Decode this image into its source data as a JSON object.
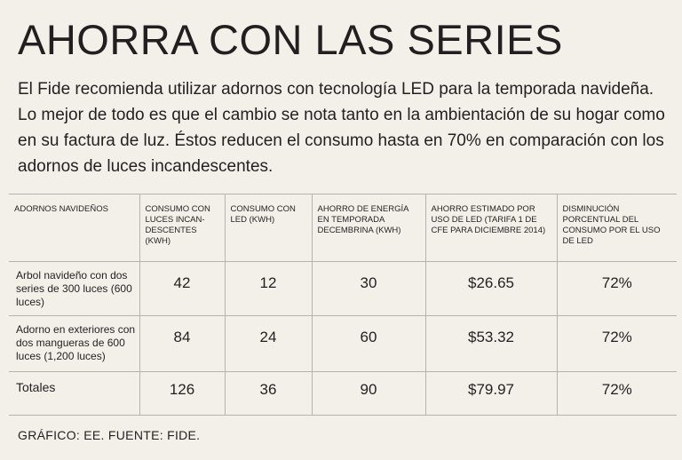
{
  "title": "AHORRA CON LAS SERIES",
  "intro": "El Fide recomienda utilizar adornos con tecnología LED para la temporada navideña. Lo mejor de todo es que el cambio se nota tanto en la ambientación de su hogar como en su factura de luz. Éstos reducen el consumo hasta en 70% en comparación con los adornos de luces incandescentes.",
  "table": {
    "headers": [
      "ADORNOS NAVIDEÑOS",
      "CONSUMO CON LUCES INCAN-DESCENTES (KWH)",
      "CONSUMO CON LED (KWH)",
      "AHORRO DE ENERGÍA EN TEMPORADA DECEMBRINA (KWH)",
      "AHORRO ESTIMADO POR USO DE LED (TARIFA 1 DE CFE PARA DICIEMBRE 2014)",
      "DISMINUCIÓN PORCENTUAL DEL CONSUMO POR EL USO DE LED"
    ],
    "rows": [
      [
        "Arbol navideño con dos series de 300 luces (600 luces)",
        "42",
        "12",
        "30",
        "$26.65",
        "72%"
      ],
      [
        "Adorno en exteriores con dos mangueras de 600 luces (1,200 luces)",
        "84",
        "24",
        "60",
        "$53.32",
        "72%"
      ],
      [
        "Totales",
        "126",
        "36",
        "90",
        "$79.97",
        "72%"
      ]
    ]
  },
  "credit": "GRÁFICO: EE. FUENTE: FIDE."
}
